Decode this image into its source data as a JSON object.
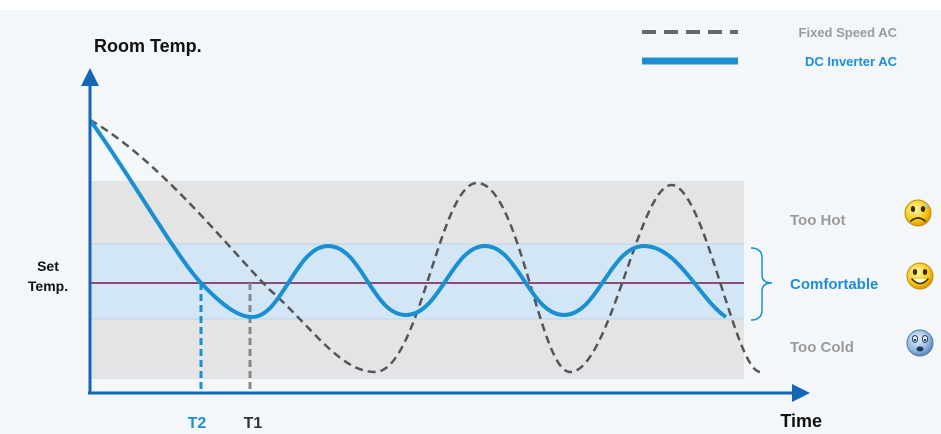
{
  "axes": {
    "y_label": "Room Temp.",
    "x_label": "Time",
    "set_temp_line1": "Set",
    "set_temp_line2": "Temp."
  },
  "legend": {
    "fixed_speed": "Fixed Speed AC",
    "dc_inverter": "DC Inverter AC"
  },
  "zones": {
    "too_hot": "Too Hot",
    "comfortable": "Comfortable",
    "too_cold": "Too Cold"
  },
  "markers": {
    "t1": "T1",
    "t2": "T2"
  },
  "colors": {
    "axis": "#1566b5",
    "inverter": "#1a8fd1",
    "fixed": "#555555",
    "setpoint": "#8c4b78",
    "comfort_band": "#d3e6f5",
    "outer_band": "#e4e4e4",
    "gray_label": "#9a9a9a",
    "blue_label": "#1f8dd6"
  },
  "icons": {
    "too_hot": "sad-face-icon",
    "comfortable": "happy-face-icon",
    "too_cold": "worried-face-icon"
  }
}
